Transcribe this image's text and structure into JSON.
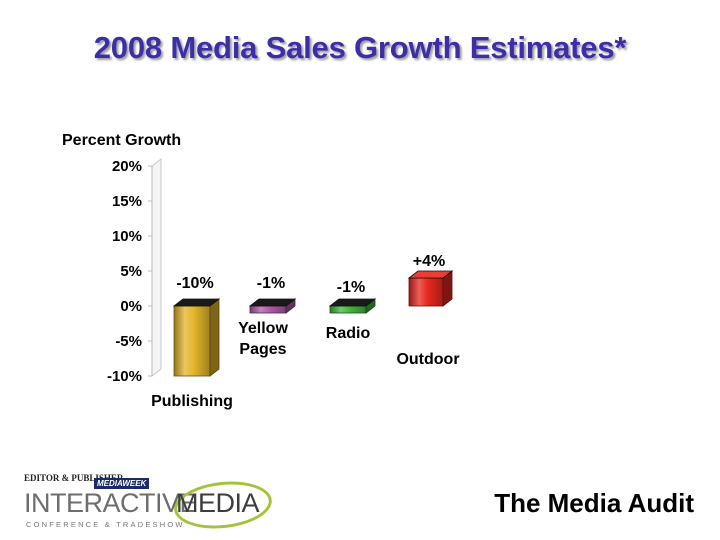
{
  "title": "2008 Media Sales Growth Estimates*",
  "footer": {
    "source": "The Media Audit",
    "logo": {
      "top_left": "EDITOR & PUBLISHER",
      "top_right": "MEDIAWEEK",
      "word1": "INTERACTIVE",
      "word2": "MEDIA",
      "tagline": "CONFERENCE & TRADESHOW"
    }
  },
  "chart_data": {
    "type": "bar",
    "title": "2008 Media Sales Growth Estimates*",
    "ylabel": "Percent Growth",
    "xlabel": "",
    "ylim": [
      -10,
      20
    ],
    "yticks": [
      20,
      15,
      10,
      5,
      0,
      -5,
      -10
    ],
    "ytick_labels": [
      "20%",
      "15%",
      "10%",
      "5%",
      "0%",
      "-5%",
      "-10%"
    ],
    "grid": false,
    "categories": [
      "Publishing",
      "Yellow Pages",
      "Radio",
      "Outdoor"
    ],
    "category_lines": [
      [
        "Publishing"
      ],
      [
        "Yellow",
        "Pages"
      ],
      [
        "Radio"
      ],
      [
        "Outdoor"
      ]
    ],
    "values": [
      -10,
      -1,
      -1,
      4
    ],
    "data_labels": [
      "-10%",
      "-1%",
      "-1%",
      "+4%"
    ],
    "colors": [
      "#e3b52a",
      "#b05aa8",
      "#3fb83a",
      "#e8281e"
    ]
  }
}
